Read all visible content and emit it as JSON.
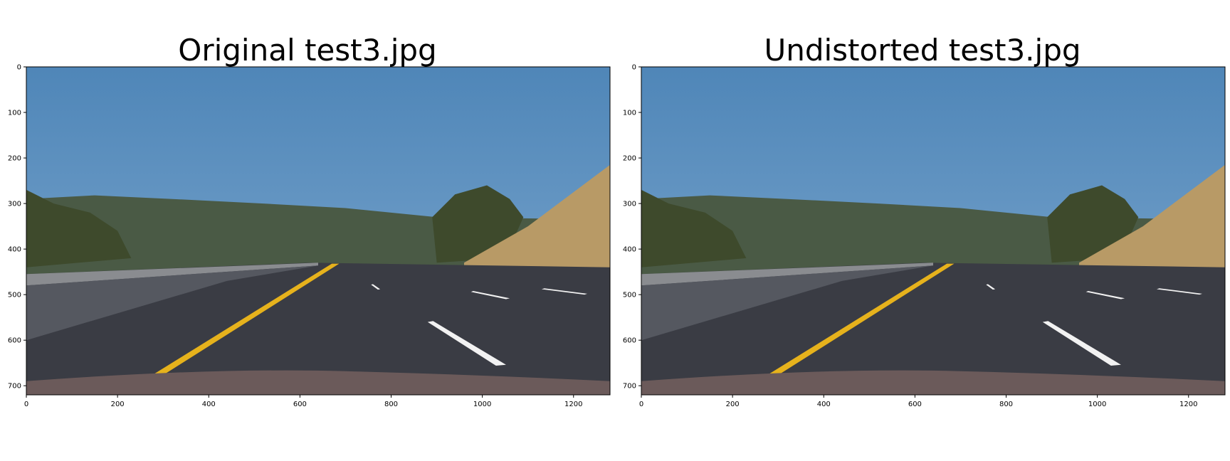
{
  "chart_data": [
    {
      "type": "image",
      "title": "Original test3.jpg",
      "xlim": [
        0,
        1280
      ],
      "ylim": [
        720,
        0
      ],
      "xticks": [
        0,
        200,
        400,
        600,
        800,
        1000,
        1200
      ],
      "yticks": [
        0,
        100,
        200,
        300,
        400,
        500,
        600,
        700
      ],
      "grid": false
    },
    {
      "type": "image",
      "title": "Undistorted test3.jpg",
      "xlim": [
        0,
        1280
      ],
      "ylim": [
        720,
        0
      ],
      "xticks": [
        0,
        200,
        400,
        600,
        800,
        1000,
        1200
      ],
      "yticks": [
        0,
        100,
        200,
        300,
        400,
        500,
        600,
        700
      ],
      "grid": false
    }
  ],
  "colors": {
    "sky_top": "#4f86b8",
    "sky_bottom": "#7fa9cf",
    "hills": "#4a5a45",
    "trees": "#3e4a2c",
    "dry_hill": "#b89a66",
    "road": "#3a3c44",
    "barrier": "#555860",
    "yellow_line": "#e6b21c",
    "white_line": "#f2f2f2",
    "hood": "#6b5a5a"
  }
}
